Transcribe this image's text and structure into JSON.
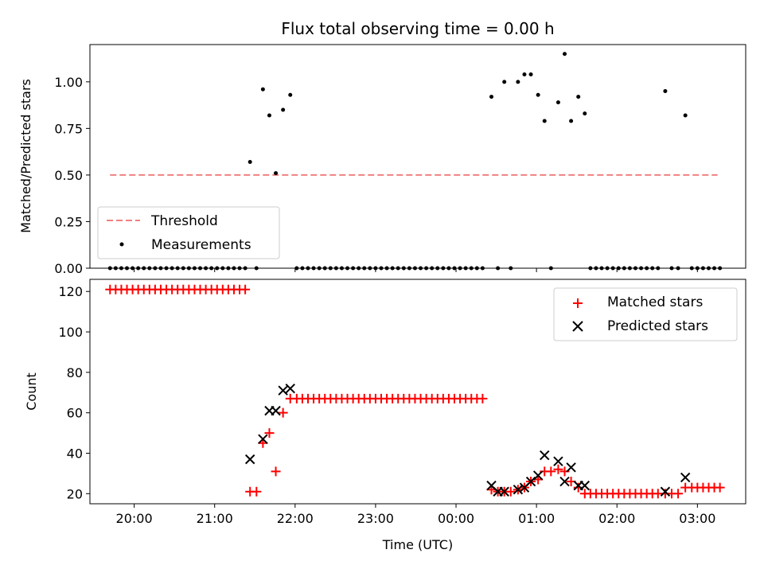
{
  "chart_data": [
    {
      "type": "scatter",
      "title": "Flux total observing time = 0.00 h",
      "xlabel": "",
      "ylabel": "Matched/Predicted stars",
      "xlim": [
        19.45,
        27.6
      ],
      "ylim": [
        0.0,
        1.2
      ],
      "yticks": [
        0.0,
        0.25,
        0.5,
        0.75,
        1.0
      ],
      "ytick_labels": [
        "0.00",
        "0.25",
        "0.50",
        "0.75",
        "1.00"
      ],
      "grid": false,
      "legend": {
        "position": "lower-left",
        "entries": [
          {
            "label": "Threshold",
            "style": "dashed-line",
            "color": "#f08080"
          },
          {
            "label": "Measurements",
            "style": "dot",
            "color": "#000000"
          }
        ]
      },
      "series": [
        {
          "name": "Threshold",
          "style": "dashed-line",
          "color": "#f08080",
          "x": [
            19.7,
            27.25
          ],
          "y": [
            0.5,
            0.5
          ]
        },
        {
          "name": "Measurements",
          "style": "dot",
          "color": "#000000",
          "points": [
            [
              19.7,
              0
            ],
            [
              19.77,
              0
            ],
            [
              19.84,
              0
            ],
            [
              19.91,
              0
            ],
            [
              19.98,
              0
            ],
            [
              20.05,
              0
            ],
            [
              20.12,
              0
            ],
            [
              20.19,
              0
            ],
            [
              20.26,
              0
            ],
            [
              20.33,
              0
            ],
            [
              20.4,
              0
            ],
            [
              20.47,
              0
            ],
            [
              20.54,
              0
            ],
            [
              20.61,
              0
            ],
            [
              20.68,
              0
            ],
            [
              20.75,
              0
            ],
            [
              20.82,
              0
            ],
            [
              20.89,
              0
            ],
            [
              20.96,
              0
            ],
            [
              21.03,
              0
            ],
            [
              21.1,
              0
            ],
            [
              21.17,
              0
            ],
            [
              21.24,
              0
            ],
            [
              21.31,
              0
            ],
            [
              21.38,
              0
            ],
            [
              21.44,
              0.57
            ],
            [
              21.52,
              0
            ],
            [
              21.6,
              0.96
            ],
            [
              21.68,
              0.82
            ],
            [
              21.76,
              0.51
            ],
            [
              21.85,
              0.85
            ],
            [
              21.94,
              0.93
            ],
            [
              22.02,
              0
            ],
            [
              22.09,
              0
            ],
            [
              22.16,
              0
            ],
            [
              22.23,
              0
            ],
            [
              22.3,
              0
            ],
            [
              22.37,
              0
            ],
            [
              22.44,
              0
            ],
            [
              22.51,
              0
            ],
            [
              22.58,
              0
            ],
            [
              22.65,
              0
            ],
            [
              22.72,
              0
            ],
            [
              22.79,
              0
            ],
            [
              22.86,
              0
            ],
            [
              22.93,
              0
            ],
            [
              23.0,
              0
            ],
            [
              23.07,
              0
            ],
            [
              23.14,
              0
            ],
            [
              23.21,
              0
            ],
            [
              23.28,
              0
            ],
            [
              23.35,
              0
            ],
            [
              23.42,
              0
            ],
            [
              23.49,
              0
            ],
            [
              23.56,
              0
            ],
            [
              23.63,
              0
            ],
            [
              23.7,
              0
            ],
            [
              23.77,
              0
            ],
            [
              23.84,
              0
            ],
            [
              23.91,
              0
            ],
            [
              23.98,
              0
            ],
            [
              24.05,
              0
            ],
            [
              24.12,
              0
            ],
            [
              24.19,
              0
            ],
            [
              24.26,
              0
            ],
            [
              24.33,
              0
            ],
            [
              24.44,
              0.92
            ],
            [
              24.52,
              0
            ],
            [
              24.6,
              1.0
            ],
            [
              24.68,
              0
            ],
            [
              24.77,
              1.0
            ],
            [
              24.85,
              1.04
            ],
            [
              24.93,
              1.04
            ],
            [
              25.02,
              0.93
            ],
            [
              25.1,
              0.79
            ],
            [
              25.18,
              0
            ],
            [
              25.27,
              0.89
            ],
            [
              25.35,
              1.15
            ],
            [
              25.43,
              0.79
            ],
            [
              25.52,
              0.92
            ],
            [
              25.6,
              0.83
            ],
            [
              25.67,
              0
            ],
            [
              25.74,
              0
            ],
            [
              25.81,
              0
            ],
            [
              25.88,
              0
            ],
            [
              25.95,
              0
            ],
            [
              26.02,
              0
            ],
            [
              26.09,
              0
            ],
            [
              26.16,
              0
            ],
            [
              26.23,
              0
            ],
            [
              26.3,
              0
            ],
            [
              26.37,
              0
            ],
            [
              26.44,
              0
            ],
            [
              26.51,
              0
            ],
            [
              26.6,
              0.95
            ],
            [
              26.68,
              0
            ],
            [
              26.76,
              0
            ],
            [
              26.85,
              0.82
            ],
            [
              26.93,
              0
            ],
            [
              27.0,
              0
            ],
            [
              27.07,
              0
            ],
            [
              27.14,
              0
            ],
            [
              27.21,
              0
            ],
            [
              27.28,
              0
            ]
          ]
        }
      ]
    },
    {
      "type": "scatter",
      "title": "",
      "xlabel": "Time (UTC)",
      "ylabel": "Count",
      "xlim": [
        19.45,
        27.6
      ],
      "ylim": [
        15,
        126
      ],
      "yticks": [
        20,
        40,
        60,
        80,
        100,
        120
      ],
      "xticks": [
        20,
        21,
        22,
        23,
        24,
        25,
        26,
        27
      ],
      "xtick_labels": [
        "20:00",
        "21:00",
        "22:00",
        "23:00",
        "00:00",
        "01:00",
        "02:00",
        "03:00"
      ],
      "grid": false,
      "legend": {
        "position": "upper-right",
        "entries": [
          {
            "label": "Matched stars",
            "style": "plus",
            "color": "#ff0000"
          },
          {
            "label": "Predicted stars",
            "style": "x",
            "color": "#000000"
          }
        ]
      },
      "series": [
        {
          "name": "Matched stars",
          "style": "plus",
          "color": "#ff0000",
          "points": [
            [
              19.7,
              121
            ],
            [
              19.77,
              121
            ],
            [
              19.84,
              121
            ],
            [
              19.91,
              121
            ],
            [
              19.98,
              121
            ],
            [
              20.05,
              121
            ],
            [
              20.12,
              121
            ],
            [
              20.19,
              121
            ],
            [
              20.26,
              121
            ],
            [
              20.33,
              121
            ],
            [
              20.4,
              121
            ],
            [
              20.47,
              121
            ],
            [
              20.54,
              121
            ],
            [
              20.61,
              121
            ],
            [
              20.68,
              121
            ],
            [
              20.75,
              121
            ],
            [
              20.82,
              121
            ],
            [
              20.89,
              121
            ],
            [
              20.96,
              121
            ],
            [
              21.03,
              121
            ],
            [
              21.1,
              121
            ],
            [
              21.17,
              121
            ],
            [
              21.24,
              121
            ],
            [
              21.31,
              121
            ],
            [
              21.38,
              121
            ],
            [
              21.44,
              21
            ],
            [
              21.52,
              21
            ],
            [
              21.6,
              45
            ],
            [
              21.68,
              50
            ],
            [
              21.76,
              31
            ],
            [
              21.85,
              60
            ],
            [
              21.94,
              67
            ],
            [
              22.02,
              67
            ],
            [
              22.09,
              67
            ],
            [
              22.16,
              67
            ],
            [
              22.23,
              67
            ],
            [
              22.3,
              67
            ],
            [
              22.37,
              67
            ],
            [
              22.44,
              67
            ],
            [
              22.51,
              67
            ],
            [
              22.58,
              67
            ],
            [
              22.65,
              67
            ],
            [
              22.72,
              67
            ],
            [
              22.79,
              67
            ],
            [
              22.86,
              67
            ],
            [
              22.93,
              67
            ],
            [
              23.0,
              67
            ],
            [
              23.07,
              67
            ],
            [
              23.14,
              67
            ],
            [
              23.21,
              67
            ],
            [
              23.28,
              67
            ],
            [
              23.35,
              67
            ],
            [
              23.42,
              67
            ],
            [
              23.49,
              67
            ],
            [
              23.56,
              67
            ],
            [
              23.63,
              67
            ],
            [
              23.7,
              67
            ],
            [
              23.77,
              67
            ],
            [
              23.84,
              67
            ],
            [
              23.91,
              67
            ],
            [
              23.98,
              67
            ],
            [
              24.05,
              67
            ],
            [
              24.12,
              67
            ],
            [
              24.19,
              67
            ],
            [
              24.26,
              67
            ],
            [
              24.33,
              67
            ],
            [
              24.44,
              22
            ],
            [
              24.52,
              21
            ],
            [
              24.6,
              21
            ],
            [
              24.68,
              21
            ],
            [
              24.77,
              22
            ],
            [
              24.85,
              23
            ],
            [
              24.93,
              26
            ],
            [
              25.02,
              27
            ],
            [
              25.1,
              31
            ],
            [
              25.18,
              31
            ],
            [
              25.27,
              32
            ],
            [
              25.35,
              31
            ],
            [
              25.43,
              26
            ],
            [
              25.52,
              23
            ],
            [
              25.6,
              20
            ],
            [
              25.67,
              20
            ],
            [
              25.74,
              20
            ],
            [
              25.81,
              20
            ],
            [
              25.88,
              20
            ],
            [
              25.95,
              20
            ],
            [
              26.02,
              20
            ],
            [
              26.09,
              20
            ],
            [
              26.16,
              20
            ],
            [
              26.23,
              20
            ],
            [
              26.3,
              20
            ],
            [
              26.37,
              20
            ],
            [
              26.44,
              20
            ],
            [
              26.51,
              20
            ],
            [
              26.6,
              20
            ],
            [
              26.68,
              20
            ],
            [
              26.76,
              20
            ],
            [
              26.85,
              23
            ],
            [
              26.93,
              23
            ],
            [
              27.0,
              23
            ],
            [
              27.07,
              23
            ],
            [
              27.14,
              23
            ],
            [
              27.21,
              23
            ],
            [
              27.28,
              23
            ]
          ]
        },
        {
          "name": "Predicted stars",
          "style": "x",
          "color": "#000000",
          "points": [
            [
              21.44,
              37
            ],
            [
              21.6,
              47
            ],
            [
              21.68,
              61
            ],
            [
              21.76,
              61
            ],
            [
              21.85,
              71
            ],
            [
              21.94,
              72
            ],
            [
              24.44,
              24
            ],
            [
              24.52,
              21
            ],
            [
              24.6,
              21
            ],
            [
              24.77,
              22
            ],
            [
              24.85,
              23
            ],
            [
              24.93,
              26
            ],
            [
              25.02,
              29
            ],
            [
              25.1,
              39
            ],
            [
              25.27,
              36
            ],
            [
              25.35,
              26
            ],
            [
              25.43,
              33
            ],
            [
              25.52,
              24
            ],
            [
              25.6,
              24
            ],
            [
              26.6,
              21
            ],
            [
              26.85,
              28
            ]
          ]
        }
      ]
    }
  ]
}
